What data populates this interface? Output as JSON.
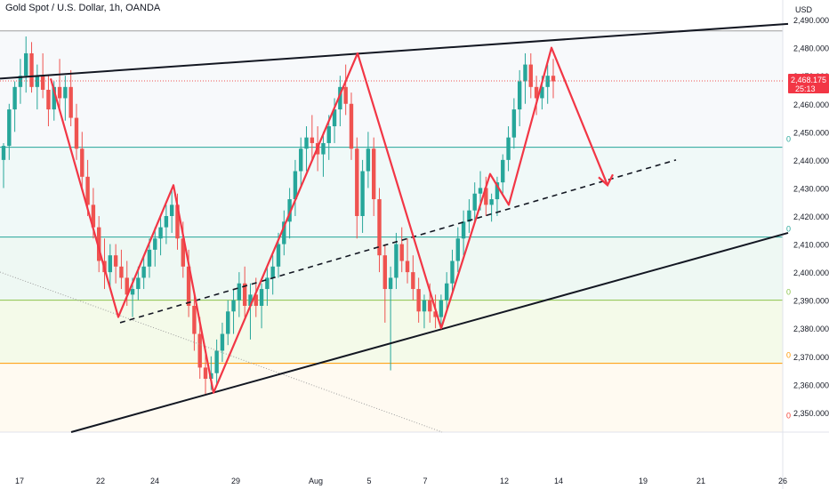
{
  "title": "Gold Spot / U.S. Dollar, 1h, OANDA",
  "currency": "USD",
  "price_label": "2,468.175",
  "countdown": "25:13",
  "fib_labels": [
    "0",
    "0",
    "0",
    "0",
    "0"
  ],
  "chart_data": {
    "type": "line",
    "ylim": [
      2343,
      2497
    ],
    "y_ticks": [
      2490,
      2480,
      2470,
      2460,
      2450,
      2440,
      2430,
      2420,
      2410,
      2400,
      2390,
      2380,
      2370,
      2360,
      2350
    ],
    "y_tick_labels": [
      "2,490.000",
      "2,480.000",
      "2,470.000",
      "2,460.000",
      "2,450.000",
      "2,440.000",
      "2,430.000",
      "2,420.000",
      "2,410.000",
      "2,400.000",
      "2,390.000",
      "2,380.000",
      "2,370.000",
      "2,360.000",
      "2,350.000"
    ],
    "x_tick_labels": [
      "17",
      "22",
      "24",
      "29",
      "Aug",
      "5",
      "7",
      "12",
      "14",
      "19",
      "21",
      "26"
    ],
    "last_price": 2468.175,
    "horizontal_levels": [
      {
        "value": 2486,
        "color": "#9e9e9e"
      },
      {
        "value": 2444.5,
        "color": "#26a69a"
      },
      {
        "value": 2412.5,
        "color": "#26a69a"
      },
      {
        "value": 2390,
        "color": "#8bc34a"
      },
      {
        "value": 2367.5,
        "color": "#ff9800"
      }
    ],
    "zigzag_path": [
      2469,
      2384,
      2431,
      2357,
      2478,
      2380,
      2435,
      2424,
      2480,
      2431
    ],
    "candles": [
      [
        2440,
        2446,
        2430,
        2445
      ],
      [
        2445,
        2460,
        2440,
        2458
      ],
      [
        2458,
        2468,
        2450,
        2466
      ],
      [
        2466,
        2476,
        2460,
        2470
      ],
      [
        2470,
        2484,
        2464,
        2478
      ],
      [
        2478,
        2482,
        2464,
        2466
      ],
      [
        2466,
        2474,
        2458,
        2470
      ],
      [
        2470,
        2478,
        2462,
        2465
      ],
      [
        2465,
        2470,
        2452,
        2458
      ],
      [
        2458,
        2468,
        2454,
        2466
      ],
      [
        2466,
        2476,
        2458,
        2462
      ],
      [
        2462,
        2470,
        2454,
        2466
      ],
      [
        2466,
        2472,
        2452,
        2455
      ],
      [
        2455,
        2460,
        2440,
        2444
      ],
      [
        2444,
        2450,
        2430,
        2434
      ],
      [
        2434,
        2440,
        2420,
        2424
      ],
      [
        2424,
        2430,
        2412,
        2416
      ],
      [
        2416,
        2420,
        2400,
        2404
      ],
      [
        2404,
        2412,
        2394,
        2400
      ],
      [
        2400,
        2410,
        2394,
        2406
      ],
      [
        2406,
        2410,
        2396,
        2402
      ],
      [
        2402,
        2408,
        2394,
        2398
      ],
      [
        2398,
        2404,
        2388,
        2392
      ],
      [
        2392,
        2398,
        2384,
        2394
      ],
      [
        2394,
        2402,
        2390,
        2398
      ],
      [
        2398,
        2406,
        2394,
        2402
      ],
      [
        2402,
        2412,
        2398,
        2408
      ],
      [
        2408,
        2416,
        2402,
        2412
      ],
      [
        2412,
        2420,
        2406,
        2416
      ],
      [
        2416,
        2424,
        2410,
        2420
      ],
      [
        2420,
        2430,
        2414,
        2424
      ],
      [
        2424,
        2428,
        2408,
        2412
      ],
      [
        2412,
        2418,
        2398,
        2402
      ],
      [
        2402,
        2408,
        2384,
        2388
      ],
      [
        2388,
        2392,
        2372,
        2378
      ],
      [
        2378,
        2384,
        2362,
        2366
      ],
      [
        2366,
        2372,
        2356,
        2362
      ],
      [
        2362,
        2370,
        2358,
        2364
      ],
      [
        2364,
        2376,
        2360,
        2372
      ],
      [
        2372,
        2382,
        2368,
        2378
      ],
      [
        2378,
        2390,
        2374,
        2386
      ],
      [
        2386,
        2394,
        2378,
        2390
      ],
      [
        2390,
        2400,
        2384,
        2396
      ],
      [
        2396,
        2402,
        2384,
        2388
      ],
      [
        2388,
        2396,
        2376,
        2392
      ],
      [
        2392,
        2398,
        2384,
        2388
      ],
      [
        2388,
        2396,
        2380,
        2394
      ],
      [
        2394,
        2402,
        2388,
        2398
      ],
      [
        2398,
        2406,
        2392,
        2402
      ],
      [
        2402,
        2414,
        2398,
        2410
      ],
      [
        2410,
        2422,
        2406,
        2418
      ],
      [
        2418,
        2430,
        2412,
        2426
      ],
      [
        2426,
        2440,
        2420,
        2436
      ],
      [
        2436,
        2448,
        2430,
        2444
      ],
      [
        2444,
        2452,
        2436,
        2448
      ],
      [
        2448,
        2456,
        2440,
        2446
      ],
      [
        2446,
        2452,
        2436,
        2442
      ],
      [
        2442,
        2450,
        2434,
        2446
      ],
      [
        2446,
        2456,
        2440,
        2452
      ],
      [
        2452,
        2462,
        2446,
        2458
      ],
      [
        2458,
        2470,
        2452,
        2466
      ],
      [
        2466,
        2474,
        2456,
        2460
      ],
      [
        2460,
        2464,
        2440,
        2444
      ],
      [
        2444,
        2448,
        2412,
        2420
      ],
      [
        2420,
        2440,
        2414,
        2436
      ],
      [
        2436,
        2450,
        2430,
        2444
      ],
      [
        2444,
        2448,
        2420,
        2426
      ],
      [
        2426,
        2430,
        2400,
        2406
      ],
      [
        2406,
        2410,
        2382,
        2394
      ],
      [
        2394,
        2402,
        2365,
        2398
      ],
      [
        2398,
        2414,
        2394,
        2410
      ],
      [
        2410,
        2416,
        2400,
        2404
      ],
      [
        2404,
        2412,
        2396,
        2400
      ],
      [
        2400,
        2406,
        2390,
        2394
      ],
      [
        2394,
        2398,
        2382,
        2386
      ],
      [
        2386,
        2392,
        2380,
        2390
      ],
      [
        2390,
        2396,
        2382,
        2386
      ],
      [
        2386,
        2392,
        2380,
        2384
      ],
      [
        2384,
        2392,
        2380,
        2390
      ],
      [
        2390,
        2400,
        2386,
        2396
      ],
      [
        2396,
        2408,
        2392,
        2404
      ],
      [
        2404,
        2416,
        2400,
        2412
      ],
      [
        2412,
        2422,
        2406,
        2418
      ],
      [
        2418,
        2426,
        2414,
        2422
      ],
      [
        2422,
        2432,
        2418,
        2428
      ],
      [
        2428,
        2436,
        2422,
        2430
      ],
      [
        2430,
        2434,
        2420,
        2424
      ],
      [
        2424,
        2428,
        2418,
        2426
      ],
      [
        2426,
        2434,
        2420,
        2432
      ],
      [
        2432,
        2442,
        2428,
        2440
      ],
      [
        2440,
        2452,
        2436,
        2448
      ],
      [
        2448,
        2462,
        2444,
        2458
      ],
      [
        2458,
        2472,
        2452,
        2468
      ],
      [
        2468,
        2478,
        2460,
        2474
      ],
      [
        2474,
        2478,
        2462,
        2466
      ],
      [
        2466,
        2470,
        2456,
        2462
      ],
      [
        2462,
        2470,
        2458,
        2466
      ],
      [
        2466,
        2474,
        2460,
        2470
      ],
      [
        2470,
        2476,
        2462,
        2468
      ]
    ]
  }
}
